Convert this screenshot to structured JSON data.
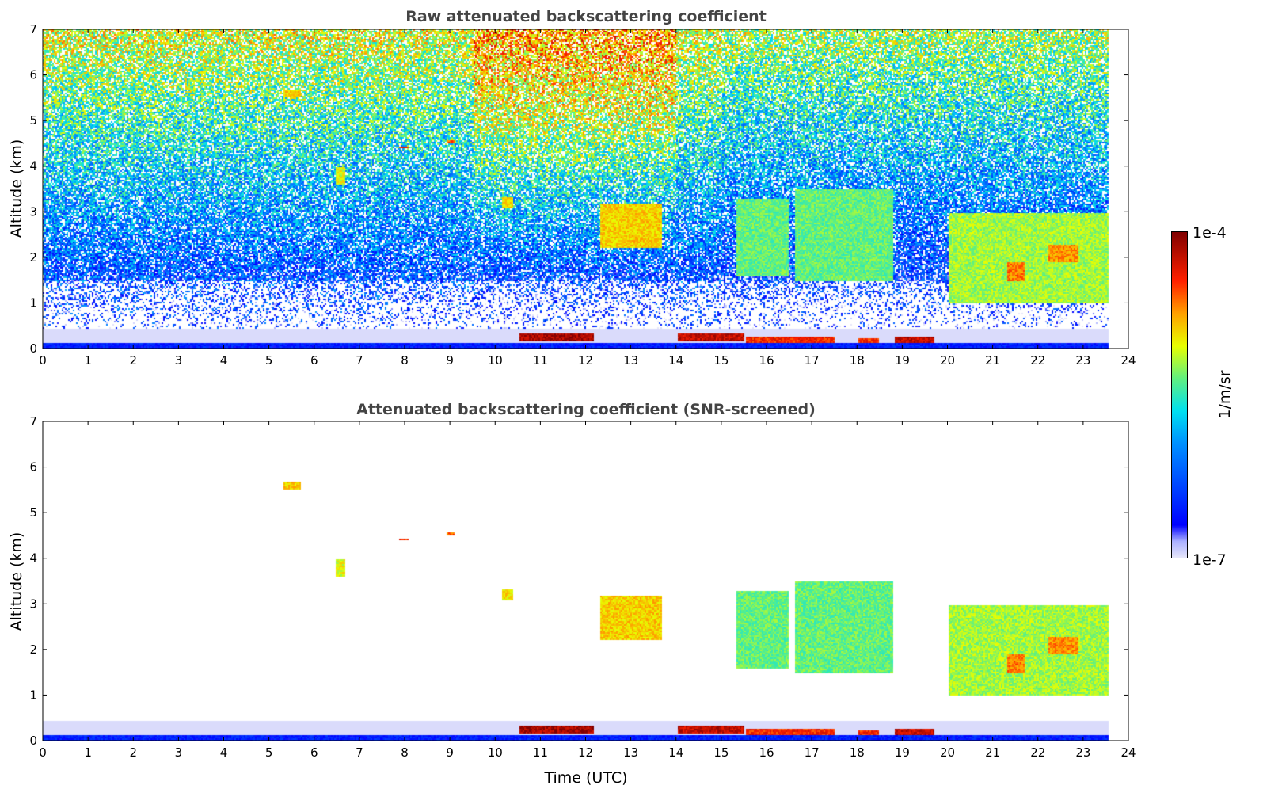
{
  "chart_data": [
    {
      "type": "heatmap",
      "title": "Raw attenuated backscattering coefficient",
      "xlabel": "",
      "ylabel": "Altitude (km)",
      "xlim": [
        0,
        24
      ],
      "ylim": [
        0,
        7
      ],
      "xticks": [
        "0",
        "1",
        "2",
        "3",
        "4",
        "5",
        "6",
        "7",
        "8",
        "9",
        "10",
        "11",
        "12",
        "13",
        "14",
        "15",
        "16",
        "17",
        "18",
        "19",
        "20",
        "21",
        "22",
        "23",
        "24"
      ],
      "yticks": [
        "0",
        "1",
        "2",
        "3",
        "4",
        "5",
        "6",
        "7"
      ],
      "data_end_hour": 23.55,
      "screened": false
    },
    {
      "type": "heatmap",
      "title": "Attenuated backscattering coefficient (SNR-screened)",
      "xlabel": "Time (UTC)",
      "ylabel": "Altitude (km)",
      "xlim": [
        0,
        24
      ],
      "ylim": [
        0,
        7
      ],
      "xticks": [
        "0",
        "1",
        "2",
        "3",
        "4",
        "5",
        "6",
        "7",
        "8",
        "9",
        "10",
        "11",
        "12",
        "13",
        "14",
        "15",
        "16",
        "17",
        "18",
        "19",
        "20",
        "21",
        "22",
        "23",
        "24"
      ],
      "yticks": [
        "0",
        "1",
        "2",
        "3",
        "4",
        "5",
        "6",
        "7"
      ],
      "data_end_hour": 23.55,
      "screened": true
    }
  ],
  "features": [
    {
      "t": [
        0,
        23.55
      ],
      "z": [
        0,
        0.15
      ],
      "level": 0.15
    },
    {
      "t": [
        10.5,
        12.2
      ],
      "z": [
        0.18,
        0.34
      ],
      "level": 0.95
    },
    {
      "t": [
        14,
        15.5
      ],
      "z": [
        0.18,
        0.36
      ],
      "level": 0.92
    },
    {
      "t": [
        15.5,
        17.5
      ],
      "z": [
        0.14,
        0.3
      ],
      "level": 0.85
    },
    {
      "t": [
        18,
        18.5
      ],
      "z": [
        0.12,
        0.26
      ],
      "level": 0.85
    },
    {
      "t": [
        18.8,
        19.7
      ],
      "z": [
        0.14,
        0.3
      ],
      "level": 0.92
    },
    {
      "t": [
        12.3,
        13.7
      ],
      "z": [
        2.2,
        3.2
      ],
      "level": 0.7
    },
    {
      "t": [
        15.3,
        16.5
      ],
      "z": [
        1.6,
        3.3
      ],
      "level": 0.55
    },
    {
      "t": [
        16.6,
        18.8
      ],
      "z": [
        1.5,
        3.5
      ],
      "level": 0.55
    },
    {
      "t": [
        20,
        23.55
      ],
      "z": [
        1.0,
        3.0
      ],
      "level": 0.6
    },
    {
      "t": [
        21.3,
        21.7
      ],
      "z": [
        1.5,
        1.9
      ],
      "level": 0.78
    },
    {
      "t": [
        22.2,
        22.9
      ],
      "z": [
        1.9,
        2.3
      ],
      "level": 0.76
    },
    {
      "t": [
        5.3,
        5.7
      ],
      "z": [
        5.5,
        5.7
      ],
      "level": 0.7
    },
    {
      "t": [
        7.85,
        8.1
      ],
      "z": [
        4.4,
        4.47
      ],
      "level": 0.85
    },
    {
      "t": [
        8.9,
        9.1
      ],
      "z": [
        4.52,
        4.6
      ],
      "level": 0.8
    },
    {
      "t": [
        6.45,
        6.7
      ],
      "z": [
        3.6,
        4.0
      ],
      "level": 0.65
    },
    {
      "t": [
        10.1,
        10.4
      ],
      "z": [
        3.1,
        3.35
      ],
      "level": 0.68
    }
  ],
  "colorbar": {
    "label": "1/m/sr",
    "max_label": "1e-4",
    "min_label": "1e-7",
    "stops": [
      "#e6e6fa",
      "#aab0ff",
      "#0000ff",
      "#0090ff",
      "#00e0f0",
      "#60f080",
      "#e8ff00",
      "#ffa000",
      "#ff2000",
      "#800000"
    ]
  }
}
